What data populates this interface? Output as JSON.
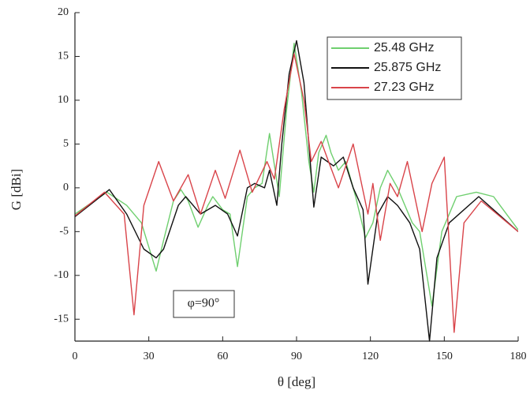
{
  "chart_data": {
    "type": "line",
    "x_label": "θ [deg]",
    "y_label": "G [dBi]",
    "annotation": "φ=90°",
    "xlim": [
      0,
      180
    ],
    "xticks": [
      0,
      30,
      60,
      90,
      120,
      150,
      180
    ],
    "ylim": [
      -17.5,
      20
    ],
    "yticks": [
      -15,
      -10,
      -5,
      0,
      5,
      10,
      15,
      20
    ],
    "legend": "upper-right",
    "series": [
      {
        "name": "25.48 GHz",
        "color": "#6fcf6f",
        "x": [
          0,
          13,
          21,
          27,
          33,
          36,
          40,
          43,
          46,
          50,
          54,
          56,
          60,
          63,
          66,
          70,
          73,
          76,
          79,
          83,
          86,
          89,
          92,
          95,
          97,
          99,
          102,
          104,
          107,
          110,
          114,
          118,
          121,
          124,
          127,
          131,
          134,
          137,
          140,
          145,
          149,
          155,
          163,
          170,
          180
        ],
        "values": [
          -3,
          -0.5,
          -2,
          -4,
          -9.5,
          -6,
          -1.5,
          -0.2,
          -1.5,
          -4.5,
          -2,
          -1,
          -2.5,
          -3,
          -9,
          -1,
          0,
          0.5,
          6.2,
          -1,
          9,
          16.5,
          11,
          3,
          -0.5,
          4,
          6,
          4,
          2,
          3,
          -1,
          -5.7,
          -4,
          0,
          2,
          0,
          -2,
          -4,
          -5,
          -13.5,
          -5,
          -1,
          -0.5,
          -1,
          -4.8
        ]
      },
      {
        "name": "25.875 GHz",
        "color": "#111111",
        "x": [
          0,
          14,
          21,
          28,
          33,
          36,
          42,
          45,
          51,
          57,
          62,
          66,
          70,
          73,
          77,
          79,
          82,
          84,
          87,
          90,
          93,
          95,
          97,
          100,
          105,
          109,
          113,
          117,
          119,
          123,
          127,
          131,
          136,
          140,
          144,
          147,
          152,
          164,
          180
        ],
        "values": [
          -3.3,
          -0.2,
          -3,
          -7,
          -8,
          -7,
          -2,
          -1,
          -3,
          -2,
          -3,
          -5.5,
          0,
          0.5,
          0,
          2,
          -2,
          5,
          13,
          16.8,
          12,
          5,
          -2.2,
          3.5,
          2.5,
          3.5,
          0,
          -2.5,
          -11,
          -3,
          -1,
          -2,
          -4,
          -7,
          -17.5,
          -8,
          -4,
          -1,
          -5
        ]
      },
      {
        "name": "27.23 GHz",
        "color": "#d9444a",
        "x": [
          0,
          12,
          20,
          24,
          28,
          34,
          40,
          46,
          51,
          57,
          61,
          67,
          72,
          78,
          81,
          85,
          89,
          93,
          96,
          100,
          103,
          107,
          113,
          119,
          121,
          124,
          128,
          131,
          135,
          141,
          145,
          150,
          154,
          158,
          165,
          180
        ],
        "values": [
          -3.2,
          -0.5,
          -3,
          -14.5,
          -2,
          3,
          -1.5,
          1.5,
          -3,
          2,
          -1.2,
          4.3,
          -0.5,
          3,
          1,
          9,
          15.3,
          10,
          3,
          5.3,
          3,
          0,
          5,
          -3,
          0.5,
          -6,
          0.5,
          -1,
          3,
          -5,
          0.5,
          3.5,
          -16.5,
          -4,
          -1.5,
          -5
        ]
      }
    ]
  }
}
